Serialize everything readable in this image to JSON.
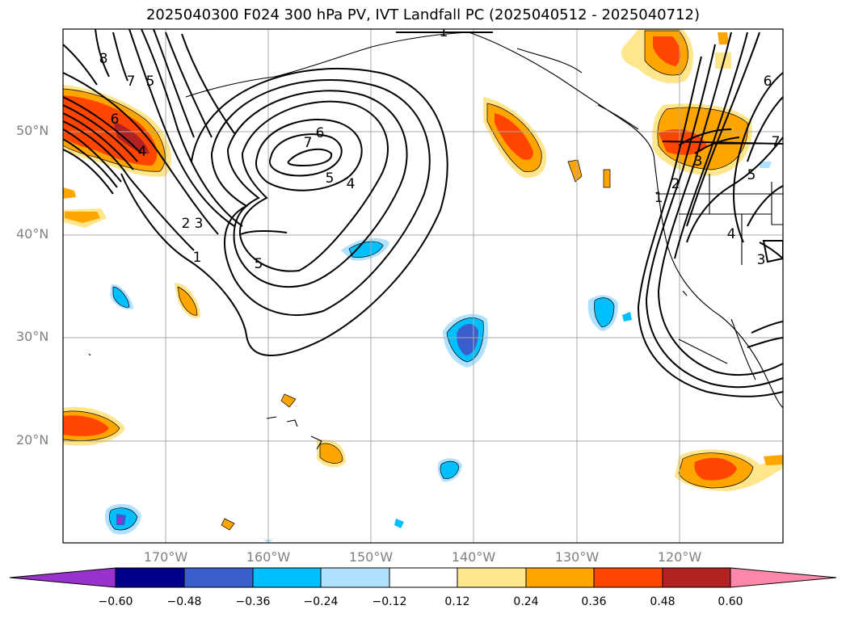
{
  "title": "2025040300 F024 300 hPa PV, IVT Landfall PC (2025040512 - 2025040712)",
  "lat_labels": [
    "50°N",
    "40°N",
    "30°N",
    "20°N"
  ],
  "lon_labels": [
    "170°W",
    "160°W",
    "150°W",
    "140°W",
    "130°W",
    "120°W"
  ],
  "colorbar": {
    "ticks": [
      "−0.60",
      "−0.48",
      "−0.36",
      "−0.24",
      "−0.12",
      "0.12",
      "0.24",
      "0.36",
      "0.48",
      "0.60"
    ],
    "colors": [
      "#9932cc",
      "#00008b",
      "#3a5fcd",
      "#00bfff",
      "#b0e2ff",
      "#ffffff",
      "#ffe68c",
      "#ffa500",
      "#ff4500",
      "#b22222",
      "#ff88aa"
    ]
  },
  "contour_labels": [
    "8",
    "7",
    "5",
    "6",
    "4",
    "2",
    "3",
    "1",
    "6",
    "7",
    "5",
    "4",
    "5",
    "1",
    "6",
    "7",
    "5",
    "3",
    "2",
    "1",
    "4",
    "3"
  ]
}
